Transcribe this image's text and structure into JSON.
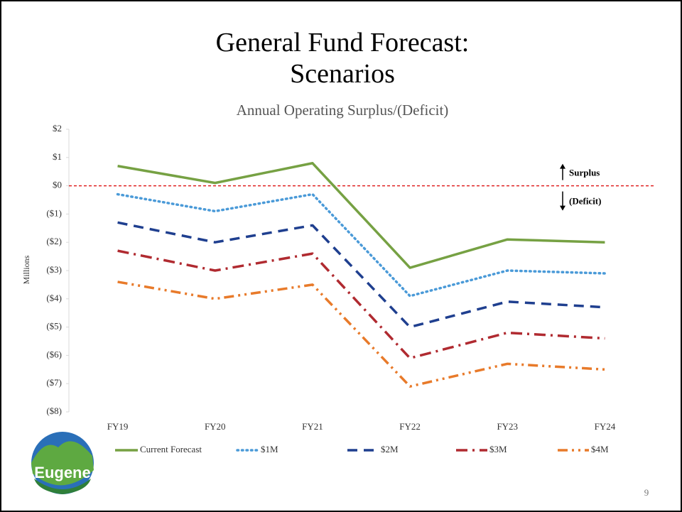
{
  "chart_data": {
    "type": "line",
    "title": "General Fund Forecast: Scenarios",
    "subtitle": "Annual Operating Surplus/(Deficit)",
    "y_axis_label": "Millions",
    "categories": [
      "FY19",
      "FY20",
      "FY21",
      "FY22",
      "FY23",
      "FY24"
    ],
    "series": [
      {
        "name": "Current Forecast",
        "color": "#76a143",
        "style": "solid",
        "values": [
          0.7,
          0.1,
          0.8,
          -2.9,
          -1.9,
          -2.0
        ]
      },
      {
        "name": "$1M",
        "color": "#4a9ad8",
        "style": "dotted",
        "values": [
          -0.3,
          -0.9,
          -0.3,
          -3.9,
          -3.0,
          -3.1
        ]
      },
      {
        "name": "$2M",
        "color": "#1f3f8f",
        "style": "dashed",
        "values": [
          -1.3,
          -2.0,
          -1.4,
          -5.0,
          -4.1,
          -4.3
        ]
      },
      {
        "name": "$3M",
        "color": "#b02a30",
        "style": "dash-dot",
        "values": [
          -2.3,
          -3.0,
          -2.4,
          -6.1,
          -5.2,
          -5.4
        ]
      },
      {
        "name": "$4M",
        "color": "#e87a2a",
        "style": "dash-dot-dot",
        "values": [
          -3.4,
          -4.0,
          -3.5,
          -7.1,
          -6.3,
          -6.5
        ]
      }
    ],
    "ylim": [
      -8,
      2
    ],
    "yticks": [
      {
        "value": 2,
        "label": "$2"
      },
      {
        "value": 1,
        "label": "$1"
      },
      {
        "value": 0,
        "label": "$0"
      },
      {
        "value": -1,
        "label": "($1)"
      },
      {
        "value": -2,
        "label": "($2)"
      },
      {
        "value": -3,
        "label": "($3)"
      },
      {
        "value": -4,
        "label": "($4)"
      },
      {
        "value": -5,
        "label": "($5)"
      },
      {
        "value": -6,
        "label": "($6)"
      },
      {
        "value": -7,
        "label": "($7)"
      },
      {
        "value": -8,
        "label": "($8)"
      }
    ],
    "reference_line": {
      "value": 0,
      "color": "#e02020"
    },
    "annotations": {
      "surplus": "Surplus",
      "deficit": "(Deficit)"
    },
    "legend": "bottom",
    "grid": false
  },
  "slide": {
    "page_number": 9,
    "logo_text": "Eugene"
  }
}
